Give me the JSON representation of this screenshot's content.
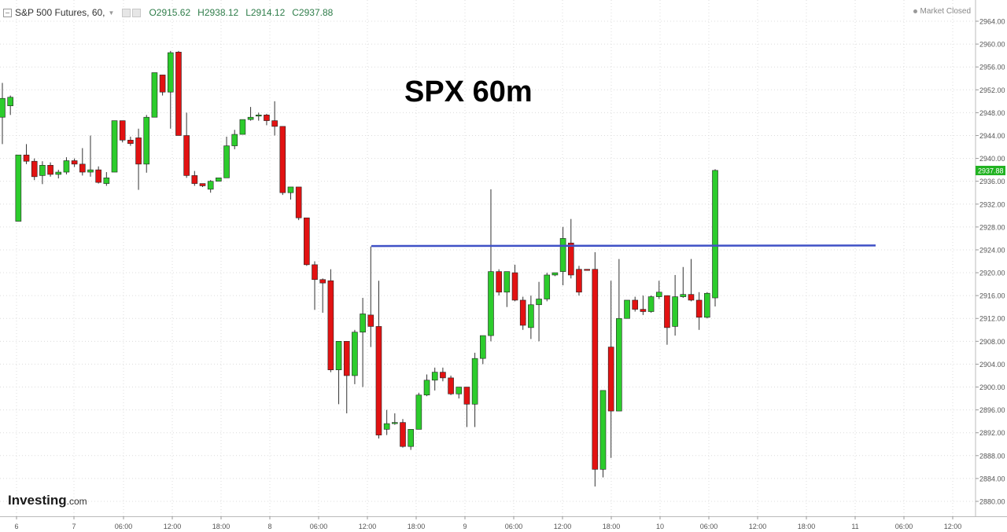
{
  "header": {
    "symbol": "S&P 500 Futures, 60,",
    "open": "O2915.62",
    "high": "H2938.12",
    "low": "L2914.12",
    "close": "C2937.88",
    "icons": [
      "chart-toggle-icon",
      "dropdown-icon",
      "settings-icon",
      "close-icon"
    ]
  },
  "status": {
    "text": "Market Closed"
  },
  "annotation": {
    "text": "SPX 60m"
  },
  "logo": {
    "main": "Investing",
    "suffix": ".com"
  },
  "colors": {
    "up": "#2ccc2c",
    "down": "#e21212",
    "line": "#3f51c6",
    "price_tag": "#22b322",
    "grid": "#dcdcdc"
  },
  "chart_data": {
    "type": "candlestick",
    "ylim": [
      2878,
      2966
    ],
    "y_ticks": [
      "2880.00",
      "2884.00",
      "2888.00",
      "2892.00",
      "2896.00",
      "2900.00",
      "2904.00",
      "2908.00",
      "2912.00",
      "2916.00",
      "2920.00",
      "2924.00",
      "2928.00",
      "2932.00",
      "2936.00",
      "2940.00",
      "2944.00",
      "2948.00",
      "2952.00",
      "2956.00",
      "2960.00",
      "2964.00"
    ],
    "x_ticks": [
      "6",
      "7",
      "06:00",
      "12:00",
      "18:00",
      "8",
      "06:00",
      "12:00",
      "18:00",
      "9",
      "06:00",
      "12:00",
      "18:00",
      "10",
      "06:00",
      "12:00",
      "18:00",
      "11",
      "06:00",
      "12:00"
    ],
    "last_price": "2937.88",
    "resistance_level": 2924.6,
    "candles": [
      {
        "o": 2947.2,
        "h": 2953.2,
        "l": 2942.5,
        "c": 2950.5
      },
      {
        "o": 2949.2,
        "h": 2951.0,
        "l": 2947.6,
        "c": 2950.7
      },
      {
        "o": 2929.0,
        "h": 2940.6,
        "l": 2929.0,
        "c": 2940.6
      },
      {
        "o": 2940.6,
        "h": 2942.5,
        "l": 2939.0,
        "c": 2939.5
      },
      {
        "o": 2939.5,
        "h": 2940.0,
        "l": 2936.2,
        "c": 2936.8
      },
      {
        "o": 2937.0,
        "h": 2939.5,
        "l": 2935.5,
        "c": 2938.8
      },
      {
        "o": 2938.8,
        "h": 2939.3,
        "l": 2936.8,
        "c": 2937.2
      },
      {
        "o": 2937.2,
        "h": 2938.0,
        "l": 2936.5,
        "c": 2937.6
      },
      {
        "o": 2937.6,
        "h": 2940.2,
        "l": 2937.2,
        "c": 2939.6
      },
      {
        "o": 2939.6,
        "h": 2940.0,
        "l": 2938.5,
        "c": 2939.0
      },
      {
        "o": 2939.0,
        "h": 2941.8,
        "l": 2937.0,
        "c": 2937.6
      },
      {
        "o": 2937.6,
        "h": 2944.0,
        "l": 2936.8,
        "c": 2938.0
      },
      {
        "o": 2938.0,
        "h": 2938.6,
        "l": 2935.6,
        "c": 2935.8
      },
      {
        "o": 2935.6,
        "h": 2937.6,
        "l": 2935.2,
        "c": 2936.6
      },
      {
        "o": 2937.6,
        "h": 2946.6,
        "l": 2937.6,
        "c": 2946.6
      },
      {
        "o": 2946.6,
        "h": 2946.6,
        "l": 2942.8,
        "c": 2943.2
      },
      {
        "o": 2943.2,
        "h": 2943.8,
        "l": 2942.2,
        "c": 2942.6
      },
      {
        "o": 2943.6,
        "h": 2945.2,
        "l": 2934.5,
        "c": 2939.0
      },
      {
        "o": 2939.0,
        "h": 2947.6,
        "l": 2937.5,
        "c": 2947.2
      },
      {
        "o": 2947.2,
        "h": 2955.0,
        "l": 2947.2,
        "c": 2955.0
      },
      {
        "o": 2954.6,
        "h": 2954.6,
        "l": 2951.0,
        "c": 2951.6
      },
      {
        "o": 2951.6,
        "h": 2958.8,
        "l": 2945.2,
        "c": 2958.5
      },
      {
        "o": 2958.6,
        "h": 2958.8,
        "l": 2944.0,
        "c": 2944.0
      },
      {
        "o": 2944.0,
        "h": 2948.0,
        "l": 2936.6,
        "c": 2937.0
      },
      {
        "o": 2937.0,
        "h": 2937.8,
        "l": 2935.2,
        "c": 2935.6
      },
      {
        "o": 2935.6,
        "h": 2935.6,
        "l": 2935.0,
        "c": 2935.2
      },
      {
        "o": 2934.6,
        "h": 2936.2,
        "l": 2934.0,
        "c": 2936.0
      },
      {
        "o": 2936.0,
        "h": 2936.6,
        "l": 2936.0,
        "c": 2936.6
      },
      {
        "o": 2936.6,
        "h": 2943.8,
        "l": 2936.6,
        "c": 2942.2
      },
      {
        "o": 2942.2,
        "h": 2945.0,
        "l": 2941.6,
        "c": 2944.2
      },
      {
        "o": 2944.2,
        "h": 2946.8,
        "l": 2944.2,
        "c": 2946.8
      },
      {
        "o": 2946.8,
        "h": 2949.0,
        "l": 2946.6,
        "c": 2947.2
      },
      {
        "o": 2947.4,
        "h": 2948.0,
        "l": 2946.6,
        "c": 2947.6
      },
      {
        "o": 2947.6,
        "h": 2947.8,
        "l": 2945.8,
        "c": 2946.6
      },
      {
        "o": 2946.6,
        "h": 2950.0,
        "l": 2944.0,
        "c": 2945.6
      },
      {
        "o": 2945.6,
        "h": 2945.6,
        "l": 2933.6,
        "c": 2934.0
      },
      {
        "o": 2934.0,
        "h": 2935.0,
        "l": 2932.8,
        "c": 2935.0
      },
      {
        "o": 2935.0,
        "h": 2935.0,
        "l": 2929.2,
        "c": 2929.6
      },
      {
        "o": 2929.6,
        "h": 2929.6,
        "l": 2921.2,
        "c": 2921.4
      },
      {
        "o": 2921.4,
        "h": 2922.0,
        "l": 2913.5,
        "c": 2918.8
      },
      {
        "o": 2918.8,
        "h": 2919.0,
        "l": 2913.0,
        "c": 2918.2
      },
      {
        "o": 2918.6,
        "h": 2920.6,
        "l": 2902.6,
        "c": 2903.0
      },
      {
        "o": 2903.0,
        "h": 2908.0,
        "l": 2897.0,
        "c": 2908.0
      },
      {
        "o": 2908.0,
        "h": 2908.0,
        "l": 2895.4,
        "c": 2902.0
      },
      {
        "o": 2902.0,
        "h": 2910.0,
        "l": 2900.5,
        "c": 2909.6
      },
      {
        "o": 2909.6,
        "h": 2915.6,
        "l": 2900.0,
        "c": 2912.8
      },
      {
        "o": 2912.6,
        "h": 2924.6,
        "l": 2907.0,
        "c": 2910.6
      },
      {
        "o": 2910.6,
        "h": 2918.6,
        "l": 2891.0,
        "c": 2891.6
      },
      {
        "o": 2892.6,
        "h": 2896.0,
        "l": 2891.6,
        "c": 2893.6
      },
      {
        "o": 2893.6,
        "h": 2895.4,
        "l": 2893.4,
        "c": 2893.8
      },
      {
        "o": 2893.8,
        "h": 2894.4,
        "l": 2889.4,
        "c": 2889.6
      },
      {
        "o": 2889.6,
        "h": 2892.6,
        "l": 2889.0,
        "c": 2892.6
      },
      {
        "o": 2892.6,
        "h": 2899.0,
        "l": 2892.6,
        "c": 2898.6
      },
      {
        "o": 2898.6,
        "h": 2902.2,
        "l": 2898.4,
        "c": 2901.2
      },
      {
        "o": 2901.2,
        "h": 2903.4,
        "l": 2899.4,
        "c": 2902.6
      },
      {
        "o": 2902.6,
        "h": 2903.4,
        "l": 2901.0,
        "c": 2901.6
      },
      {
        "o": 2901.6,
        "h": 2902.0,
        "l": 2898.6,
        "c": 2898.8
      },
      {
        "o": 2898.8,
        "h": 2900.0,
        "l": 2898.0,
        "c": 2900.0
      },
      {
        "o": 2900.0,
        "h": 2900.0,
        "l": 2893.0,
        "c": 2897.0
      },
      {
        "o": 2897.0,
        "h": 2906.0,
        "l": 2893.0,
        "c": 2905.0
      },
      {
        "o": 2905.0,
        "h": 2908.6,
        "l": 2904.0,
        "c": 2909.0
      },
      {
        "o": 2909.0,
        "h": 2934.6,
        "l": 2908.0,
        "c": 2920.2
      },
      {
        "o": 2920.2,
        "h": 2920.6,
        "l": 2916.0,
        "c": 2916.6
      },
      {
        "o": 2916.6,
        "h": 2920.2,
        "l": 2914.0,
        "c": 2920.2
      },
      {
        "o": 2920.0,
        "h": 2921.4,
        "l": 2915.0,
        "c": 2915.2
      },
      {
        "o": 2915.2,
        "h": 2915.8,
        "l": 2910.0,
        "c": 2910.8
      },
      {
        "o": 2910.4,
        "h": 2916.0,
        "l": 2908.4,
        "c": 2914.4
      },
      {
        "o": 2914.4,
        "h": 2918.4,
        "l": 2908.0,
        "c": 2915.4
      },
      {
        "o": 2915.4,
        "h": 2920.0,
        "l": 2915.0,
        "c": 2919.6
      },
      {
        "o": 2919.6,
        "h": 2920.0,
        "l": 2919.4,
        "c": 2920.0
      },
      {
        "o": 2920.2,
        "h": 2928.0,
        "l": 2917.8,
        "c": 2926.0
      },
      {
        "o": 2925.2,
        "h": 2929.4,
        "l": 2919.0,
        "c": 2919.6
      },
      {
        "o": 2920.6,
        "h": 2921.2,
        "l": 2916.0,
        "c": 2916.6
      },
      {
        "o": 2920.6,
        "h": 2920.6,
        "l": 2920.4,
        "c": 2920.4
      },
      {
        "o": 2920.6,
        "h": 2923.6,
        "l": 2882.6,
        "c": 2885.6
      },
      {
        "o": 2885.6,
        "h": 2899.4,
        "l": 2884.2,
        "c": 2899.4
      },
      {
        "o": 2907.0,
        "h": 2918.6,
        "l": 2887.6,
        "c": 2895.8
      },
      {
        "o": 2895.8,
        "h": 2922.4,
        "l": 2895.8,
        "c": 2912.0
      },
      {
        "o": 2912.0,
        "h": 2915.0,
        "l": 2912.0,
        "c": 2915.2
      },
      {
        "o": 2915.2,
        "h": 2915.8,
        "l": 2913.2,
        "c": 2913.6
      },
      {
        "o": 2913.6,
        "h": 2916.0,
        "l": 2912.6,
        "c": 2913.2
      },
      {
        "o": 2913.2,
        "h": 2916.0,
        "l": 2913.0,
        "c": 2915.8
      },
      {
        "o": 2915.8,
        "h": 2918.6,
        "l": 2915.4,
        "c": 2916.6
      },
      {
        "o": 2916.0,
        "h": 2916.0,
        "l": 2907.4,
        "c": 2910.4
      },
      {
        "o": 2910.6,
        "h": 2919.6,
        "l": 2909.0,
        "c": 2915.8
      },
      {
        "o": 2915.8,
        "h": 2921.0,
        "l": 2915.6,
        "c": 2916.2
      },
      {
        "o": 2916.2,
        "h": 2922.4,
        "l": 2915.0,
        "c": 2915.2
      },
      {
        "o": 2915.2,
        "h": 2916.6,
        "l": 2910.0,
        "c": 2912.2
      },
      {
        "o": 2912.2,
        "h": 2916.6,
        "l": 2912.0,
        "c": 2916.4
      },
      {
        "o": 2915.6,
        "h": 2938.1,
        "l": 2914.1,
        "c": 2937.9
      }
    ]
  }
}
